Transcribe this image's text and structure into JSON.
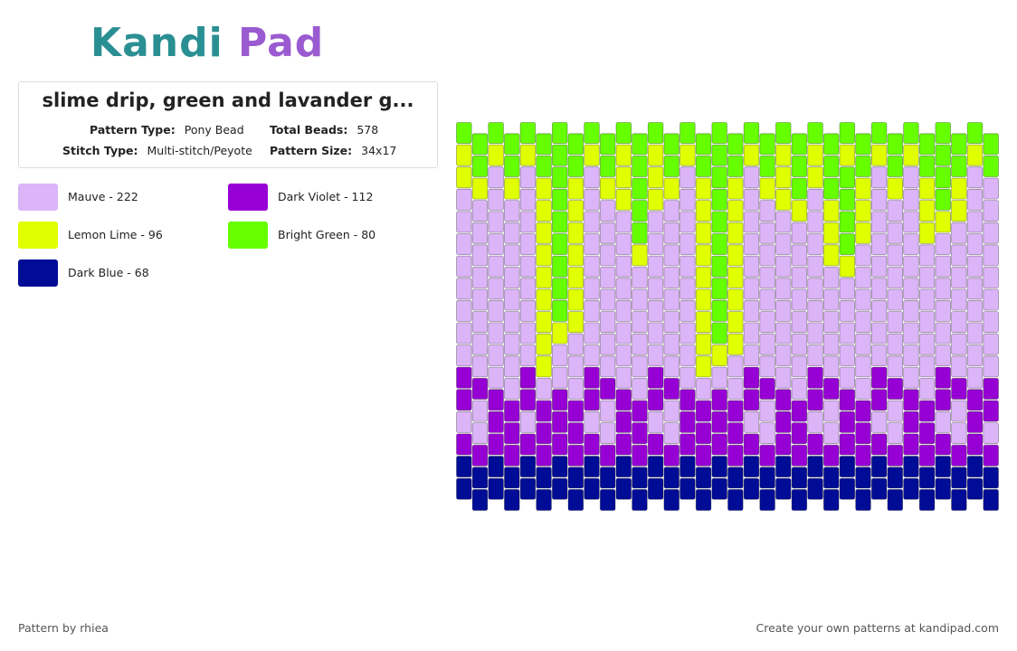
{
  "logo": "Kandi Pad",
  "header": {
    "title": "slime drip, green and lavander g...",
    "fields": [
      {
        "label": "Pattern Type:",
        "value": "Pony Bead"
      },
      {
        "label": "Total Beads:",
        "value": "578"
      },
      {
        "label": "Stitch Type:",
        "value": "Multi-stitch/Peyote"
      },
      {
        "label": "Pattern Size:",
        "value": "34x17"
      }
    ]
  },
  "legend": [
    {
      "label": "Mauve - 222",
      "color": "#dcb4f8"
    },
    {
      "label": "Dark Violet - 112",
      "color": "#9600d4"
    },
    {
      "label": "Lemon Lime - 96",
      "color": "#e0ff00"
    },
    {
      "label": "Bright Green - 80",
      "color": "#66ff00"
    },
    {
      "label": "Dark Blue - 68",
      "color": "#000c96"
    }
  ],
  "pattern": {
    "columns": [
      "32200000000110144",
      "33200000000100144",
      "32000000000011144",
      "33200000000011144",
      "32000000000110144",
      "33222222222011144",
      "33333333320011144",
      "33222222200011144",
      "32000000000110144",
      "33200000000100144",
      "32220000000011144",
      "33333200000011144",
      "32220000000110144",
      "33200000000100144",
      "32000000000011144",
      "33222222222011144",
      "33333333332011144",
      "33222222220011144",
      "32000000000110144",
      "33200000000100144",
      "32220000000011144",
      "33320000000011144",
      "32200000000110144",
      "33322200000100144",
      "32333320000011144",
      "33222000000011144",
      "32000000000110144",
      "33200000000100144",
      "32000000000011144",
      "33222000000011144",
      "33332000000110144",
      "33220000000100144",
      "32000000000011144",
      "33000000000110144"
    ]
  },
  "footer": {
    "left": "Pattern by rhiea",
    "right": "Create your own patterns at kandipad.com"
  }
}
